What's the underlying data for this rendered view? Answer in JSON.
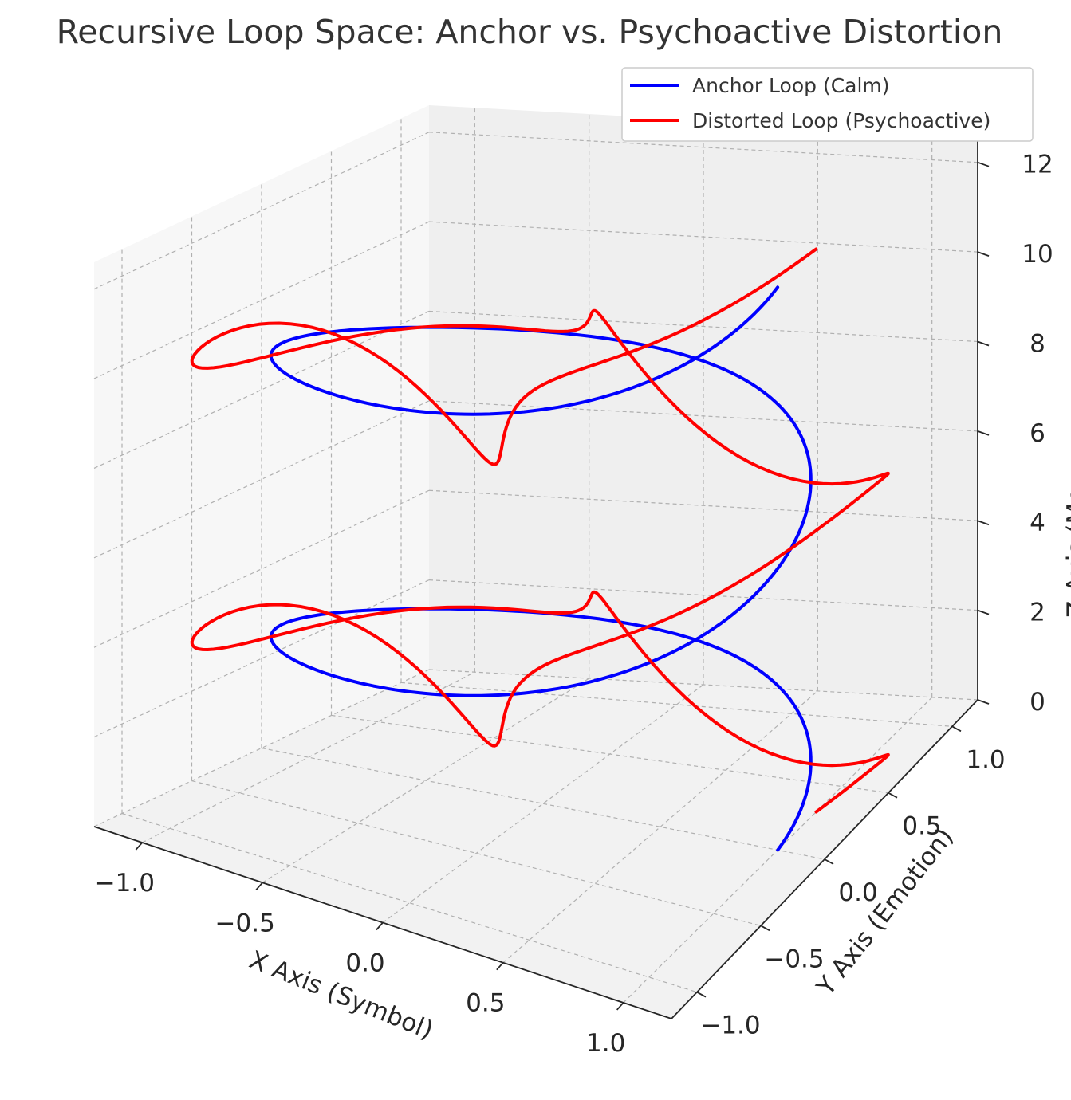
{
  "chart_data": {
    "type": "line",
    "projection": "3d",
    "title": "Recursive Loop Space: Anchor vs. Psychoactive Distortion",
    "xlabel": "X Axis (Symbol)",
    "ylabel": "Y Axis (Emotion)",
    "zlabel": "Z Axis (Memory Depth)",
    "xlim": [
      -1.2,
      1.2
    ],
    "ylim": [
      -1.2,
      1.2
    ],
    "zlim": [
      0,
      12.6
    ],
    "x_ticks": [
      "−1.0",
      "−0.5",
      "0.0",
      "0.5",
      "1.0"
    ],
    "y_ticks": [
      "−1.0",
      "−0.5",
      "0.0",
      "0.5",
      "1.0"
    ],
    "z_ticks": [
      "0",
      "2",
      "4",
      "6",
      "8",
      "10",
      "12"
    ],
    "grid": true,
    "legend_position": "top-right",
    "t_range": [
      0,
      12.566
    ],
    "samples": 400,
    "series": [
      {
        "name": "Anchor Loop (Calm)",
        "color": "#0000ff",
        "x": "cos(t)",
        "y": "sin(t)",
        "z": "t"
      },
      {
        "name": "Distorted Loop (Psychoactive)",
        "color": "#ff0000",
        "x": "cos(t) + 0.3 sin(3t)",
        "y": "sin(t) + 0.3 cos(3t)",
        "z": "t + 0.5 sin(5t)"
      }
    ]
  }
}
